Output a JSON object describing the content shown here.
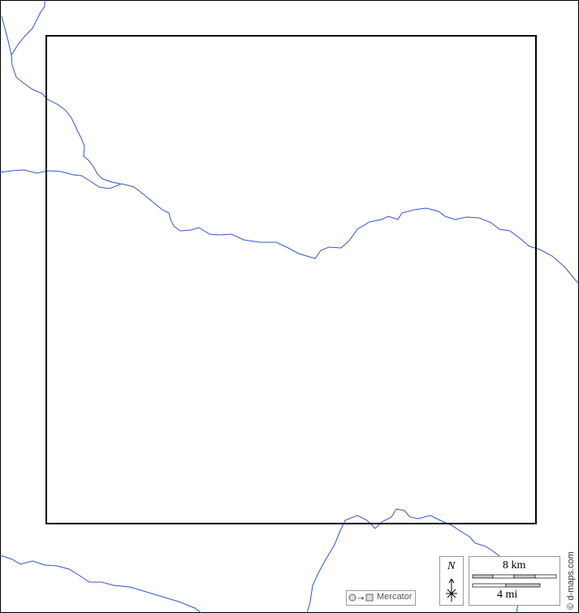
{
  "colors": {
    "river": "#3355cc",
    "frame": "#000000",
    "legend_border": "#999999",
    "scale_fill": "#c8c8c8"
  },
  "legend": {
    "projection_label": "Mercator",
    "north_label": "N",
    "scale_km_label": "8 km",
    "scale_mi_label": "4 mi"
  },
  "credit": "© d-maps.com"
}
